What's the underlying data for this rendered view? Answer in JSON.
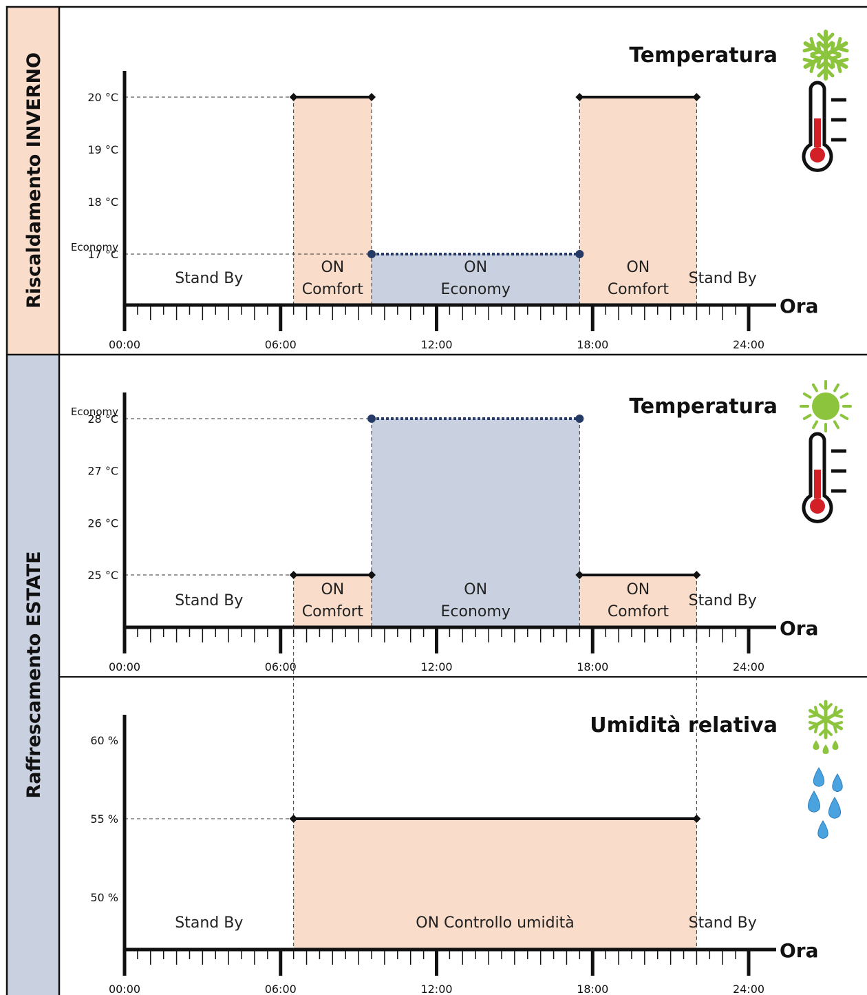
{
  "sections": {
    "winter_label": "Riscaldamento INVERNO",
    "summer_label": "Raffrescamento ESTATE"
  },
  "axis": {
    "x_label": "Ora",
    "ticks": [
      "00:00",
      "06:00",
      "12:00",
      "18:00",
      "24:00"
    ]
  },
  "colors": {
    "comfort_fill": "#f9dcc9",
    "economy_fill": "#c9d0df",
    "economy_line": "#253a66",
    "winter_band": "#f9dcc9",
    "summer_band": "#c9d0df",
    "icon_green": "#8cc43e",
    "thermo_red": "#d32027"
  },
  "icons": {
    "winter": "snowflake-icon",
    "summer": "sun-icon",
    "humidity": "frost-drops-icon",
    "temperature": "thermometer-icon",
    "water": "water-drops-icon"
  },
  "chart_data": [
    {
      "type": "step",
      "title": "Temperatura",
      "xlabel": "Ora",
      "xlim": [
        0,
        24
      ],
      "ylim": [
        16,
        20.5
      ],
      "yticks": [
        {
          "value": 20,
          "label": "20 °C"
        },
        {
          "value": 19,
          "label": "19 °C"
        },
        {
          "value": 18,
          "label": "18 °C"
        },
        {
          "value": 17,
          "label": "17 °C",
          "extra": "Economy"
        }
      ],
      "segments": [
        {
          "kind": "standby",
          "start": 0,
          "end": 6.5,
          "label": [
            "Stand By"
          ]
        },
        {
          "kind": "comfort",
          "start": 6.5,
          "end": 9.5,
          "value": 20,
          "label": [
            "ON",
            "Comfort"
          ]
        },
        {
          "kind": "economy",
          "start": 9.5,
          "end": 17.5,
          "value": 17,
          "label": [
            "ON",
            "Economy"
          ]
        },
        {
          "kind": "comfort",
          "start": 17.5,
          "end": 22,
          "value": 20,
          "label": [
            "ON",
            "Comfort"
          ]
        },
        {
          "kind": "standby",
          "start": 22,
          "end": 24,
          "label": [
            "Stand By"
          ]
        }
      ]
    },
    {
      "type": "step",
      "title": "Temperatura",
      "xlabel": "Ora",
      "xlim": [
        0,
        24
      ],
      "ylim": [
        24,
        28.5
      ],
      "yticks": [
        {
          "value": 28,
          "label": "28 °C",
          "extra": "Economy"
        },
        {
          "value": 27,
          "label": "27 °C"
        },
        {
          "value": 26,
          "label": "26 °C"
        },
        {
          "value": 25,
          "label": "25 °C"
        }
      ],
      "segments": [
        {
          "kind": "standby",
          "start": 0,
          "end": 6.5,
          "label": [
            "Stand By"
          ]
        },
        {
          "kind": "comfort",
          "start": 6.5,
          "end": 9.5,
          "value": 25,
          "label": [
            "ON",
            "Comfort"
          ]
        },
        {
          "kind": "economy",
          "start": 9.5,
          "end": 17.5,
          "value": 28,
          "label": [
            "ON",
            "Economy"
          ]
        },
        {
          "kind": "comfort",
          "start": 17.5,
          "end": 22,
          "value": 25,
          "label": [
            "ON",
            "Comfort"
          ]
        },
        {
          "kind": "standby",
          "start": 22,
          "end": 24,
          "label": [
            "Stand By"
          ]
        }
      ]
    },
    {
      "type": "step",
      "title": "Umidità relativa",
      "xlabel": "Ora",
      "xlim": [
        0,
        24
      ],
      "ylim": [
        46.5,
        62
      ],
      "yticks": [
        {
          "value": 60,
          "label": "60 %"
        },
        {
          "value": 55,
          "label": "55 %"
        },
        {
          "value": 50,
          "label": "50 %"
        }
      ],
      "segments": [
        {
          "kind": "standby",
          "start": 0,
          "end": 6.5,
          "label": [
            "Stand By"
          ]
        },
        {
          "kind": "comfort",
          "start": 6.5,
          "end": 22,
          "value": 55,
          "label": [
            "ON Controllo umidità"
          ]
        },
        {
          "kind": "standby",
          "start": 22,
          "end": 24,
          "label": [
            "Stand By"
          ]
        }
      ]
    }
  ]
}
